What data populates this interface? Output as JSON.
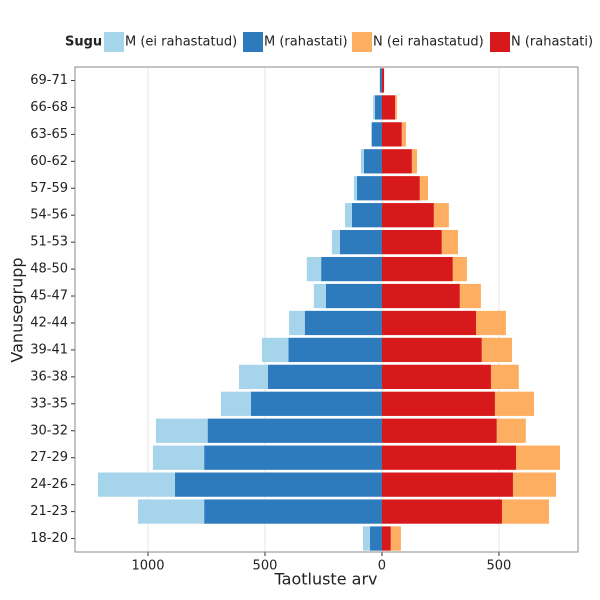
{
  "chart_data": {
    "type": "bar",
    "orientation": "horizontal",
    "stacked": true,
    "x_label": "Taotluste arv",
    "y_label": "Vanusegrupp",
    "legend_title": "Sugu",
    "legend_position": "top",
    "categories": [
      "18-20",
      "21-23",
      "24-26",
      "27-29",
      "30-32",
      "33-35",
      "36-38",
      "39-41",
      "42-44",
      "45-47",
      "48-50",
      "51-53",
      "54-56",
      "57-59",
      "60-62",
      "63-65",
      "66-68",
      "69-71"
    ],
    "series": [
      {
        "name": "M (ei rahastatud)",
        "color": "#a6d4ea",
        "values": [
          -30,
          -283,
          -329,
          -219,
          -221,
          -128,
          -124,
          -113,
          -67,
          -51,
          -61,
          -34,
          -30,
          -13,
          -13,
          -4,
          -8,
          -1
        ]
      },
      {
        "name": "M (rahastati)",
        "color": "#2d7bbd",
        "values": [
          -51,
          -760,
          -885,
          -760,
          -745,
          -560,
          -487,
          -400,
          -330,
          -240,
          -260,
          -180,
          -128,
          -107,
          -77,
          -43,
          -30,
          -9
        ]
      },
      {
        "name": "N (ei rahastatud)",
        "color": "#fdae61",
        "values": [
          43,
          201,
          184,
          188,
          124,
          167,
          119,
          129,
          128,
          90,
          60,
          69,
          64,
          35,
          22,
          18,
          8,
          0
        ]
      },
      {
        "name": "N (rahastati)",
        "color": "#d7191c",
        "values": [
          38,
          513,
          560,
          573,
          491,
          483,
          466,
          427,
          402,
          333,
          303,
          256,
          222,
          162,
          128,
          85,
          56,
          9
        ]
      }
    ],
    "xlim": [
      -1312,
      838
    ],
    "xticks": [
      {
        "value": -1000,
        "label": "1000"
      },
      {
        "value": -500,
        "label": "500"
      },
      0,
      500
    ],
    "grid": true
  }
}
